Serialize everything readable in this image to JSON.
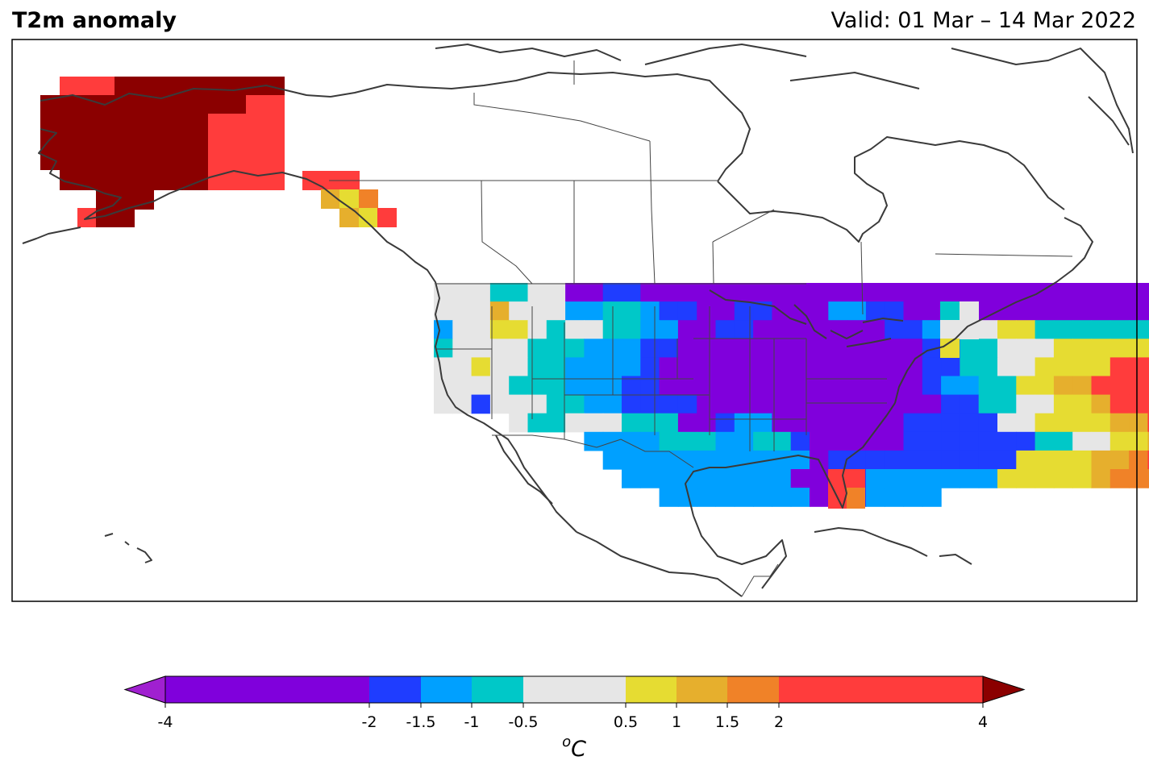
{
  "header": {
    "title": "T2m anomaly",
    "valid": "Valid: 01 Mar – 14 Mar 2022"
  },
  "colorbar": {
    "levels": [
      -4,
      -2,
      -1.5,
      -1,
      -0.5,
      0.5,
      1,
      1.5,
      2,
      4
    ],
    "tick_labels": [
      "-4",
      "-2",
      "-1.5",
      "-1",
      "-0.5",
      "0.5",
      "1",
      "1.5",
      "2",
      "4"
    ],
    "colors": [
      "#8000dc",
      "#1f3dff",
      "#00a0ff",
      "#00c8c8",
      "#e6e6e6",
      "#e6dc32",
      "#e6af2d",
      "#f08228",
      "#ff3c3c"
    ],
    "under_color": "#a020d0",
    "over_color": "#8b0000",
    "unit_base": "C",
    "unit_sup": "o"
  },
  "map_data": {
    "palette": {
      "P": "#8000dc",
      "B": "#1f3dff",
      "L": "#00a0ff",
      "C": "#00c8c8",
      "G": "#e6e6e6",
      "Y": "#e6dc32",
      "O": "#e6af2d",
      "N": "#f08228",
      "R": "#ff3c3c",
      "D": "#8b0000"
    },
    "rows": [
      "GGGCCGGPPBBPPPPPPPPPPPPPPPPPPPPPPPPPPPPPPPPPPBBBBBBB...............................",
      "GGGOGGGLLCCLBBPPBBPPPLLBBPPPPPPPPPPPPPPPBBPPPPPPPBBBB..............................",
      "LGGYYGCGGCCLLPPBBPPPPPPPBBLLGGYYCCCCCCCCCCCCCCGGGGGGGGGGGGGG......................",
      "CGGGGCCCLLLBBPPPPPPPPPPPPPBBCCGGGYYYYYYOOYYYYOOOOOYYYYGGGG.........................",
      "GGYGGCCLLLLBPPPPPPPPPPPPPPBBCCGGYYYYRRRRRRRRRRRRRNNYYYG.............................",
      "GGGGCCCLLLBBPPPPPPPPPPPPPPBLLCCYYOORRRRRRRRRRRRNNNNYY..............................",
      "GGBGGGCCLLBBBBPPPPPPPPPPPPPBBCCGGYYORRRRRRRRRRRRRRRR...............................",
      "....GCCGGGCCCPPBLLPPPPPPPBBBBBGGYYYYOORRRRRRRRRRRRR................................",
      "........LLLLCCCLLCCBPPPPPBBBBBBBCCGGYYOORRRRRRR....................................",
      ".........LLLLLLLLLLLPBBBBBBBBBBYYYYOONRRRRR........................................",
      "..........LLLLLLLLLPPBBLLLLLLLYYYYYONNNN...........................................",
      "............LLLLLLLLPPBLLLL.....................ORRR..............................."
    ]
  }
}
